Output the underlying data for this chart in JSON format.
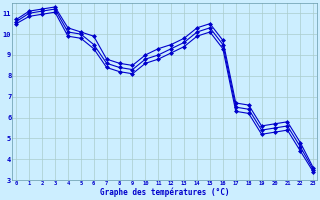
{
  "xlabel": "Graphe des températures (°C)",
  "bg_color": "#cceeff",
  "grid_color": "#aacccc",
  "line_color": "#0000cc",
  "x_data": [
    0,
    1,
    2,
    3,
    4,
    5,
    6,
    7,
    8,
    9,
    10,
    11,
    12,
    13,
    14,
    15,
    16,
    17,
    18,
    19,
    20,
    21,
    22,
    23
  ],
  "y_main": [
    10.6,
    11.0,
    11.1,
    11.2,
    10.1,
    10.0,
    9.5,
    8.6,
    8.4,
    8.3,
    8.8,
    9.0,
    9.3,
    9.6,
    10.1,
    10.3,
    9.5,
    6.5,
    6.4,
    5.4,
    5.5,
    5.6,
    4.6,
    3.5
  ],
  "y_upper": [
    10.7,
    11.1,
    11.2,
    11.3,
    10.3,
    10.1,
    9.9,
    8.8,
    8.6,
    8.5,
    9.0,
    9.3,
    9.5,
    9.8,
    10.3,
    10.5,
    9.7,
    6.7,
    6.6,
    5.6,
    5.7,
    5.8,
    4.8,
    3.6
  ],
  "y_lower": [
    10.5,
    10.85,
    10.95,
    11.05,
    9.9,
    9.8,
    9.3,
    8.4,
    8.2,
    8.1,
    8.6,
    8.8,
    9.1,
    9.4,
    9.9,
    10.1,
    9.3,
    6.3,
    6.2,
    5.2,
    5.3,
    5.4,
    4.4,
    3.4
  ],
  "ylim_min": 3,
  "ylim_max": 11.5,
  "yticks": [
    3,
    4,
    5,
    6,
    7,
    8,
    9,
    10,
    11
  ],
  "xticks": [
    0,
    1,
    2,
    3,
    4,
    5,
    6,
    7,
    8,
    9,
    10,
    11,
    12,
    13,
    14,
    15,
    16,
    17,
    18,
    19,
    20,
    21,
    22,
    23
  ],
  "xlim_min": -0.3,
  "xlim_max": 23.3
}
